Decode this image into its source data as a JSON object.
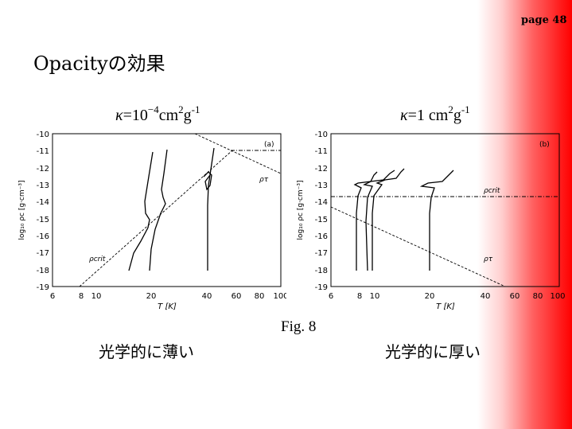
{
  "page_number": "page 48",
  "title": "Opacityの効果",
  "left_kappa": {
    "symbol": "κ",
    "eq": "=",
    "base": "10",
    "exp": "−4",
    "unit1": "cm",
    "exp2": "2",
    "unit2": "g",
    "exp3": "-1"
  },
  "right_kappa": {
    "symbol": "κ",
    "eq": "=",
    "base": "1",
    "unit1": "cm",
    "exp2": "2",
    "unit2": "g",
    "exp3": "-1"
  },
  "figure_label": "Fig. 8",
  "left_caption": "光学的に薄い",
  "right_caption": "光学的に厚い",
  "plots": {
    "y_ticks": [
      "-10",
      "-11",
      "-12",
      "-13",
      "-14",
      "-15",
      "-16",
      "-17",
      "-18",
      "-19"
    ],
    "x_ticks": [
      "6",
      "8",
      "10",
      "20",
      "40",
      "60",
      "80",
      "100"
    ],
    "x_label": "T [K]",
    "y_label": "log₁₀ ρc [g·cm⁻³]",
    "left": {
      "panel_label": "(a)",
      "tau_label": "ρτ",
      "crit_label": "ρcrit"
    },
    "right": {
      "panel_label": "(b)",
      "tau_label": "ρτ",
      "crit_label": "ρcrit"
    }
  }
}
